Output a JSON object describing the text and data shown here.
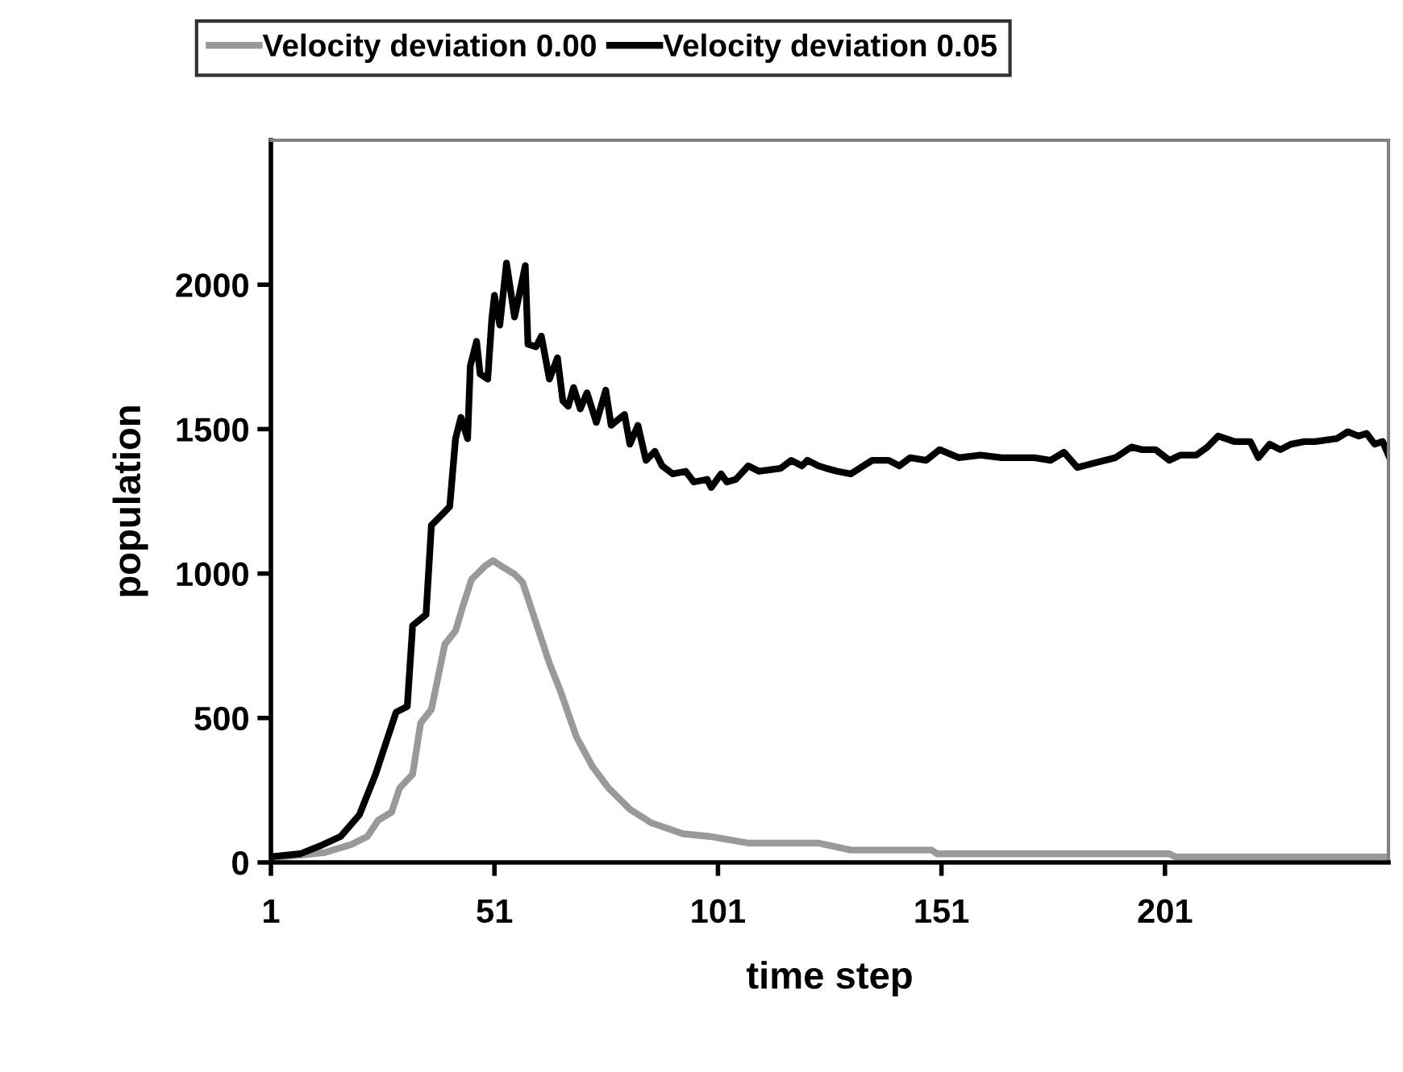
{
  "chart_data": {
    "type": "line",
    "xlabel": "time step",
    "ylabel": "population",
    "xlim": [
      1,
      251
    ],
    "xticks": [
      1,
      51,
      101,
      151,
      201
    ],
    "ylim": [
      0,
      2500
    ],
    "yticks": [
      0,
      500,
      1000,
      1500,
      2000
    ],
    "grid": false,
    "legend": "top",
    "marker": "none",
    "line_style": "solid",
    "series": [
      {
        "name": "Velocity deviation 0.00",
        "color": "#999999",
        "x": [
          1,
          13,
          19,
          22.6,
          25,
          28,
          29.8,
          32.7,
          34.5,
          36.9,
          39.9,
          42.3,
          44.1,
          45.9,
          48.9,
          50.7,
          52.5,
          55.5,
          57.3,
          59.7,
          63.3,
          65.7,
          69.3,
          72.9,
          76.5,
          81.3,
          86.1,
          93.2,
          99.2,
          103,
          107.8,
          123.5,
          130.7,
          148.8,
          150,
          202,
          203.4,
          251
        ],
        "values": [
          15,
          34,
          62,
          90,
          146,
          174,
          258,
          305,
          483,
          530,
          755,
          802,
          895,
          980,
          1026,
          1045,
          1026,
          998,
          970,
          858,
          689,
          596,
          436,
          333,
          258,
          184,
          137,
          99,
          90,
          80,
          67,
          67,
          43,
          43,
          30,
          30,
          19,
          19
        ]
      },
      {
        "name": "Velocity deviation 0.05",
        "color": "#000000",
        "x": [
          1,
          7.6,
          11.8,
          16.6,
          20.8,
          24.4,
          29,
          31.5,
          32.7,
          35.7,
          36.9,
          39.9,
          41,
          42.3,
          43.5,
          45,
          45.6,
          47,
          47.8,
          49.5,
          50.4,
          51,
          52.2,
          53.7,
          55.5,
          57.9,
          58.5,
          60.3,
          61.5,
          63.3,
          65.1,
          66.3,
          67.5,
          68.7,
          70.2,
          71.7,
          73.8,
          75.9,
          77.1,
          80.1,
          81.3,
          83.1,
          84.9,
          86.9,
          88.5,
          90.9,
          93.8,
          95.6,
          98.6,
          99.5,
          101.7,
          103,
          105,
          107.8,
          110.2,
          115,
          117.4,
          119.8,
          121,
          123.5,
          125.3,
          127.7,
          130.7,
          135.5,
          139.2,
          141.6,
          144,
          147.6,
          150.6,
          154.9,
          159.7,
          164.5,
          171.8,
          175.4,
          178.4,
          181.4,
          185,
          189.9,
          193.5,
          195.9,
          198.9,
          202,
          204.4,
          208,
          210.5,
          212.9,
          216.5,
          220.1,
          221.9,
          224.4,
          226.8,
          229.2,
          232.2,
          234.6,
          239.4,
          241.9,
          244.3,
          246.1,
          247.9,
          249.7,
          251
        ],
        "values": [
          20,
          30,
          56,
          90,
          165,
          305,
          520,
          540,
          820,
          858,
          1167,
          1214,
          1232,
          1467,
          1541,
          1467,
          1719,
          1804,
          1691,
          1673,
          1879,
          1963,
          1860,
          2075,
          1888,
          2066,
          1794,
          1785,
          1822,
          1673,
          1747,
          1598,
          1579,
          1644,
          1570,
          1626,
          1523,
          1635,
          1513,
          1551,
          1448,
          1513,
          1392,
          1423,
          1373,
          1345,
          1354,
          1317,
          1326,
          1298,
          1345,
          1317,
          1326,
          1373,
          1354,
          1364,
          1392,
          1373,
          1392,
          1373,
          1364,
          1354,
          1345,
          1392,
          1392,
          1373,
          1401,
          1392,
          1429,
          1401,
          1410,
          1401,
          1401,
          1392,
          1420,
          1367,
          1382,
          1401,
          1438,
          1429,
          1429,
          1392,
          1410,
          1410,
          1438,
          1476,
          1457,
          1457,
          1401,
          1448,
          1429,
          1448,
          1457,
          1457,
          1467,
          1491,
          1476,
          1485,
          1448,
          1457,
          1410
        ]
      }
    ]
  }
}
